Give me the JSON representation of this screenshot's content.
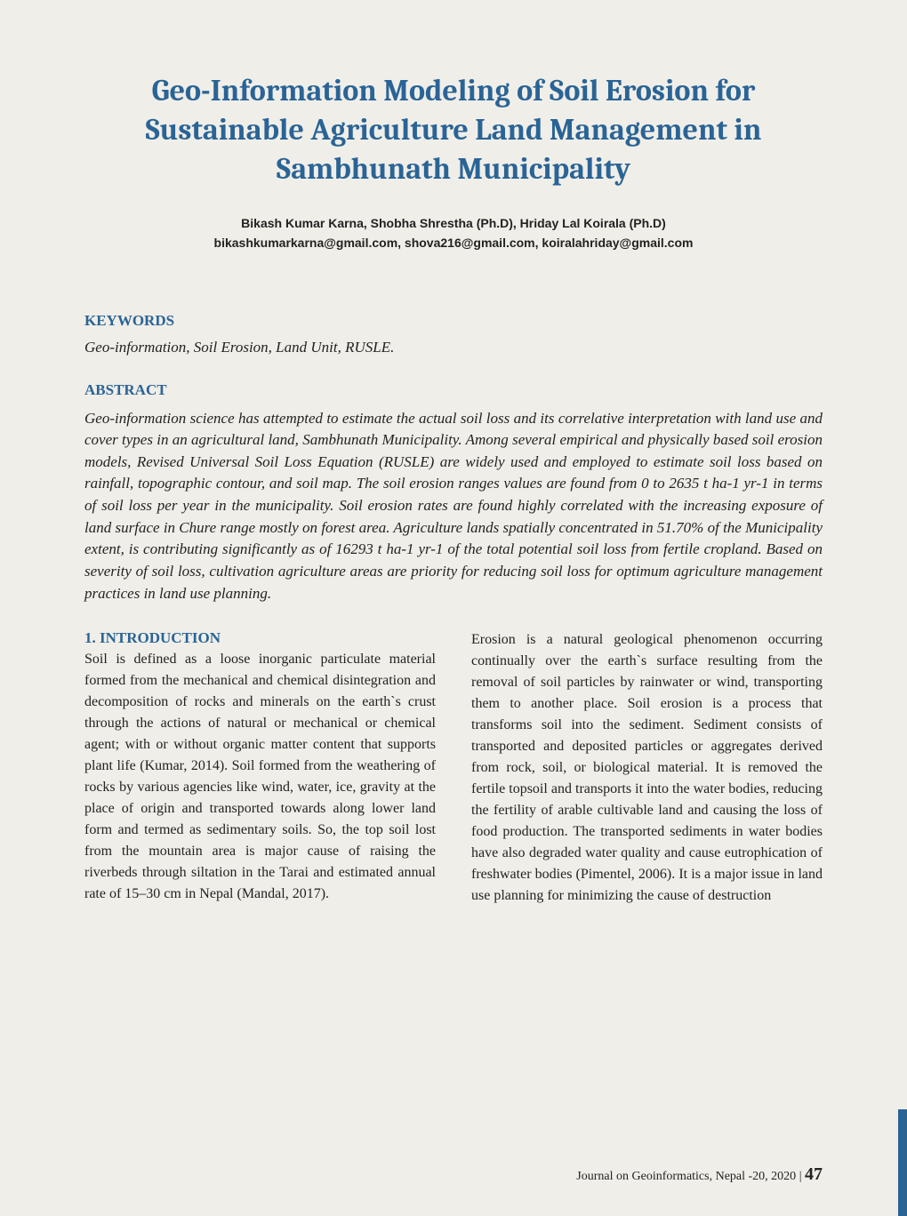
{
  "title": "Geo-Information Modeling of Soil Erosion for Sustainable Agriculture Land Management in Sambhunath Municipality",
  "authors": "Bikash Kumar Karna, Shobha Shrestha (Ph.D), Hriday Lal Koirala (Ph.D)",
  "emails": "bikashkumarkarna@gmail.com,  shova216@gmail.com, koiralahriday@gmail.com",
  "headings": {
    "keywords": "KEYWORDS",
    "abstract": "ABSTRACT",
    "introduction": "1. INTRODUCTION"
  },
  "keywords_text": "Geo-information, Soil Erosion, Land Unit, RUSLE.",
  "abstract_text": "Geo-information science has attempted to estimate the actual soil loss and its correlative interpretation with land use and cover types in an agricultural land, Sambhunath Municipality. Among several empirical and physically based soil erosion models, Revised Universal Soil Loss Equation (RUSLE) are widely used and employed to estimate soil loss based on rainfall, topographic contour, and soil map. The soil erosion ranges values are found from 0 to 2635 t ha-1 yr-1 in terms of soil loss per year in the municipality. Soil erosion rates are found highly correlated with the increasing exposure of land surface in Chure range mostly on forest area. Agriculture lands spatially concentrated in 51.70% of the Municipality extent, is contributing significantly as of 16293 t ha-1 yr-1 of the total potential soil loss from fertile cropland. Based on severity of soil loss, cultivation agriculture areas are priority for reducing soil loss for optimum agriculture management practices in land use planning.",
  "col1_text": "Soil is defined as a loose inorganic particulate material formed from the mechanical and chemical disintegration and decomposition of rocks and minerals on the earth`s crust through the actions of natural or mechanical or chemical agent; with or without organic matter content that supports plant life (Kumar, 2014). Soil formed from the weathering of rocks by various agencies like wind, water, ice, gravity at the place of origin and transported towards along lower land form and termed as sedimentary soils. So, the top soil lost from the mountain area is major cause of raising the riverbeds through siltation in the Tarai and estimated annual rate of 15–30 cm in Nepal (Mandal, 2017).",
  "col2_text": "Erosion is a natural geological phenomenon occurring continually over the earth`s surface resulting from the removal of soil particles by rainwater or wind, transporting them to another place. Soil erosion is a process that transforms soil into the sediment. Sediment consists of transported and deposited particles or aggregates derived from rock, soil, or biological material. It is removed the fertile topsoil and transports it into the water bodies, reducing the fertility of arable cultivable land and causing the loss of food production. The transported sediments in water bodies have also degraded water quality and cause eutrophication of freshwater bodies (Pimentel, 2006). It is a major issue in land use planning for minimizing the cause of destruction",
  "footer": {
    "journal": "Journal on Geoinformatics, Nepal -20, 2020",
    "separator": " | ",
    "page": "47"
  },
  "colors": {
    "accent": "#2a6496",
    "background": "#f0eee8",
    "text": "#222222"
  },
  "typography": {
    "title_fontsize": 34,
    "heading_fontsize": 17,
    "body_fontsize": 16,
    "authors_fontsize": 14,
    "footer_fontsize": 14,
    "pagenum_fontsize": 20
  }
}
